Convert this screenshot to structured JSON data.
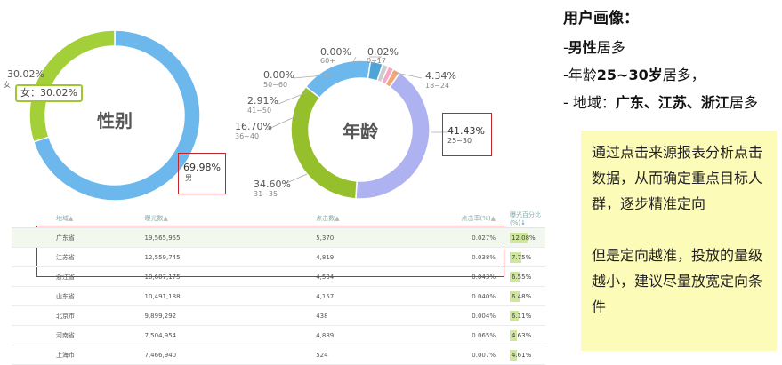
{
  "gender_chart": {
    "title": "性别",
    "segments": [
      {
        "name": "男",
        "pct_label": "69.98%",
        "value": 69.98,
        "color": "#6cb7ec"
      },
      {
        "name": "女",
        "pct_label": "30.02%",
        "value": 30.02,
        "color": "#a3cf38"
      }
    ],
    "tooltip": "女：30.02%",
    "female_label": "女"
  },
  "age_chart": {
    "title": "年龄",
    "segments": [
      {
        "name": "18~24",
        "pct_label": "4.34%",
        "value": 4.34,
        "color": "#f0a87a"
      },
      {
        "name": "25~30",
        "pct_label": "41.43%",
        "value": 41.43,
        "color": "#aeb2f0"
      },
      {
        "name": "31~35",
        "pct_label": "34.60%",
        "value": 34.6,
        "color": "#96bf2c"
      },
      {
        "name": "36~40",
        "pct_label": "16.70%",
        "value": 16.7,
        "color": "#6cb7ec"
      },
      {
        "name": "41~50",
        "pct_label": "2.91%",
        "value": 2.91,
        "color": "#4ea3d8"
      },
      {
        "name": "50~60",
        "pct_label": "0.00%",
        "value": 0.0,
        "color": "#cccccc"
      },
      {
        "name": "60+",
        "pct_label": "0.00%",
        "value": 0.0,
        "color": "#f7a8c8"
      },
      {
        "name": "0~17",
        "pct_label": "0.02%",
        "value": 0.02,
        "color": "#f5c86a"
      }
    ]
  },
  "table": {
    "headers": [
      "地域",
      "曝光数",
      "点击数",
      "点击率(%)",
      "曝光百分比(%)"
    ],
    "rows": [
      {
        "region": "广东省",
        "impressions": "19,565,955",
        "clicks": "5,370",
        "ctr": "0.027%",
        "share": "12.08%",
        "share_value": 12.08
      },
      {
        "region": "江苏省",
        "impressions": "12,559,745",
        "clicks": "4,819",
        "ctr": "0.038%",
        "share": "7.75%",
        "share_value": 7.75
      },
      {
        "region": "浙江省",
        "impressions": "10,607,175",
        "clicks": "4,534",
        "ctr": "0.043%",
        "share": "6.55%",
        "share_value": 6.55
      },
      {
        "region": "山东省",
        "impressions": "10,491,188",
        "clicks": "4,157",
        "ctr": "0.040%",
        "share": "6.48%",
        "share_value": 6.48
      },
      {
        "region": "北京市",
        "impressions": "9,899,292",
        "clicks": "438",
        "ctr": "0.004%",
        "share": "6.11%",
        "share_value": 6.11
      },
      {
        "region": "河南省",
        "impressions": "7,504,954",
        "clicks": "4,889",
        "ctr": "0.065%",
        "share": "4.63%",
        "share_value": 4.63
      },
      {
        "region": "上海市",
        "impressions": "7,466,940",
        "clicks": "524",
        "ctr": "0.007%",
        "share": "4.61%",
        "share_value": 4.61
      }
    ]
  },
  "summary": {
    "title": "用户画像：",
    "line1_prefix": "-",
    "line1_bold": "男性",
    "line1_suffix": "居多",
    "line2_prefix": "-年龄",
    "line2_bold": "25~30岁",
    "line2_suffix": "居多，",
    "line3_prefix": "- 地域：",
    "line3_bold": "广东、江苏、浙江",
    "line3_suffix": "居多"
  },
  "note": {
    "para1": "通过点击来源报表分析点击数据，从而确定重点目标人群，逐步精准定向",
    "para2": "但是定向越准，投放的量级越小，建议尽量放宽定向条件"
  },
  "colors": {
    "highlight_border": "#c0272d",
    "note_bg": "#fdfbb8",
    "bar_fill": "#cfe5a0"
  }
}
